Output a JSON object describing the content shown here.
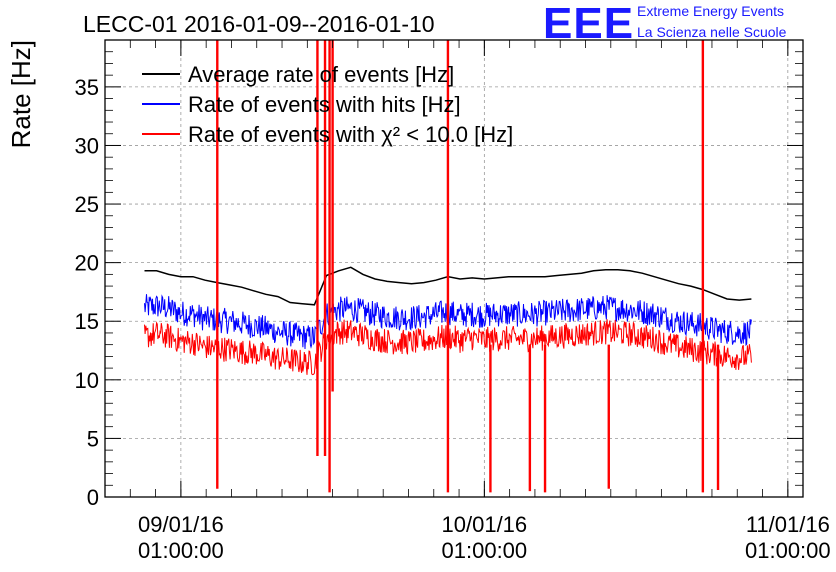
{
  "logo": {
    "mark": "EEE",
    "line1": "Extreme Energy Events",
    "line2": "La Scienza nelle Scuole",
    "color": "#1a1aff"
  },
  "chart_data": {
    "type": "line",
    "title": "LECC-01 2016-01-09--2016-01-10",
    "ylabel": "Rate [Hz]",
    "xlabel": "",
    "ylim": [
      0,
      39
    ],
    "xlim": [
      -0.25,
      2.05
    ],
    "x_unit": "days since 09/01/16 01:00:00",
    "yticks": [
      0,
      5,
      10,
      15,
      20,
      25,
      30,
      35
    ],
    "xticks": [
      {
        "x": 0,
        "label": [
          "09/01/16",
          "01:00:00"
        ]
      },
      {
        "x": 1,
        "label": [
          "10/01/16",
          "01:00:00"
        ]
      },
      {
        "x": 2,
        "label": [
          "11/01/16",
          "01:00:00"
        ]
      }
    ],
    "grid": true,
    "legend_position": "top-left",
    "series": [
      {
        "name": "Average rate of events [Hz]",
        "color": "#000000",
        "x": [
          -0.12,
          -0.08,
          -0.04,
          0.0,
          0.04,
          0.08,
          0.12,
          0.16,
          0.2,
          0.24,
          0.28,
          0.32,
          0.36,
          0.4,
          0.44,
          0.48,
          0.52,
          0.56,
          0.6,
          0.64,
          0.68,
          0.72,
          0.76,
          0.8,
          0.84,
          0.88,
          0.92,
          0.96,
          1.0,
          1.04,
          1.08,
          1.12,
          1.16,
          1.2,
          1.24,
          1.28,
          1.32,
          1.36,
          1.4,
          1.44,
          1.48,
          1.52,
          1.56,
          1.6,
          1.64,
          1.68,
          1.72,
          1.76,
          1.8,
          1.84,
          1.88
        ],
        "values": [
          19.3,
          19.3,
          19.0,
          18.8,
          18.8,
          18.5,
          18.3,
          18.1,
          17.9,
          17.6,
          17.3,
          17.1,
          16.6,
          16.5,
          16.4,
          18.9,
          19.3,
          19.6,
          19.0,
          18.6,
          18.4,
          18.3,
          18.2,
          18.3,
          18.5,
          18.8,
          18.6,
          18.7,
          18.6,
          18.7,
          18.8,
          18.8,
          18.8,
          18.8,
          18.9,
          19.0,
          19.1,
          19.3,
          19.4,
          19.4,
          19.3,
          19.1,
          18.8,
          18.5,
          18.2,
          18.0,
          17.7,
          17.3,
          16.9,
          16.8,
          16.9
        ]
      },
      {
        "name": "Rate of events with hits [Hz]",
        "color": "#0000ff",
        "x": [
          -0.12,
          -0.08,
          -0.04,
          0.0,
          0.04,
          0.08,
          0.12,
          0.16,
          0.2,
          0.24,
          0.28,
          0.32,
          0.36,
          0.4,
          0.44,
          0.48,
          0.52,
          0.56,
          0.6,
          0.64,
          0.68,
          0.72,
          0.76,
          0.8,
          0.84,
          0.88,
          0.92,
          0.96,
          1.0,
          1.04,
          1.08,
          1.12,
          1.16,
          1.2,
          1.24,
          1.28,
          1.32,
          1.36,
          1.4,
          1.44,
          1.48,
          1.52,
          1.56,
          1.6,
          1.64,
          1.68,
          1.72,
          1.76,
          1.8,
          1.84,
          1.88
        ],
        "values": [
          16.2,
          16.3,
          16.1,
          15.7,
          15.6,
          15.2,
          15.1,
          15.0,
          14.8,
          14.6,
          14.4,
          14.1,
          13.9,
          13.7,
          13.6,
          15.6,
          16.0,
          16.1,
          15.8,
          15.6,
          15.4,
          15.3,
          15.3,
          15.4,
          15.6,
          15.8,
          15.5,
          15.6,
          15.5,
          15.6,
          15.6,
          15.6,
          15.6,
          15.7,
          15.8,
          15.9,
          16.0,
          16.1,
          16.2,
          16.1,
          16.0,
          15.8,
          15.6,
          15.3,
          15.0,
          14.8,
          14.6,
          14.3,
          14.1,
          14.0,
          14.1
        ]
      },
      {
        "name": "Rate of events with χ² < 10.0 [Hz]",
        "color": "#ff0000",
        "x": [
          -0.12,
          -0.08,
          -0.04,
          0.0,
          0.04,
          0.08,
          0.12,
          0.16,
          0.2,
          0.24,
          0.28,
          0.32,
          0.36,
          0.4,
          0.44,
          0.48,
          0.52,
          0.56,
          0.6,
          0.64,
          0.68,
          0.72,
          0.76,
          0.8,
          0.84,
          0.88,
          0.92,
          0.96,
          1.0,
          1.04,
          1.08,
          1.12,
          1.16,
          1.2,
          1.24,
          1.28,
          1.32,
          1.36,
          1.4,
          1.44,
          1.48,
          1.52,
          1.56,
          1.6,
          1.64,
          1.68,
          1.72,
          1.76,
          1.8,
          1.84,
          1.88
        ],
        "values": [
          13.7,
          13.9,
          13.7,
          13.3,
          13.2,
          12.8,
          12.7,
          12.6,
          12.4,
          12.3,
          12.1,
          11.8,
          11.7,
          11.5,
          11.4,
          13.6,
          14.1,
          14.1,
          13.8,
          13.5,
          13.3,
          13.2,
          13.2,
          13.3,
          13.5,
          13.7,
          13.4,
          13.6,
          13.4,
          13.5,
          13.5,
          13.5,
          13.5,
          13.6,
          13.7,
          13.8,
          13.9,
          14.0,
          14.1,
          14.0,
          13.9,
          13.7,
          13.5,
          13.1,
          12.8,
          12.6,
          12.4,
          12.2,
          12.0,
          11.9,
          12.0
        ]
      }
    ],
    "red_spikes": [
      {
        "x": 0.12,
        "low": 0.7,
        "high": 39
      },
      {
        "x": 0.45,
        "low": 3.5,
        "high": 39
      },
      {
        "x": 0.475,
        "low": 3.5,
        "high": 39
      },
      {
        "x": 0.49,
        "low": 0.4,
        "high": 39
      },
      {
        "x": 0.5,
        "low": 9.0,
        "high": 39
      },
      {
        "x": 0.88,
        "low": 0.4,
        "high": 39
      },
      {
        "x": 1.02,
        "low": 0.4,
        "high": 13.0
      },
      {
        "x": 1.15,
        "low": 0.5,
        "high": 13.0
      },
      {
        "x": 1.2,
        "low": 0.4,
        "high": 13.0
      },
      {
        "x": 1.41,
        "low": 0.7,
        "high": 13.0
      },
      {
        "x": 1.72,
        "low": 0.4,
        "high": 39
      },
      {
        "x": 1.77,
        "low": 0.6,
        "high": 13.0
      }
    ]
  }
}
